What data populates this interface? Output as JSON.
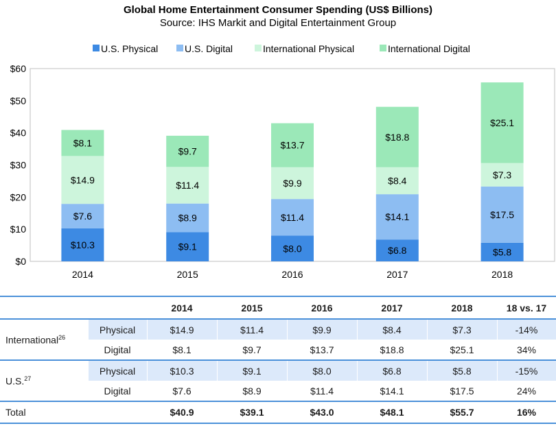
{
  "chart_data": {
    "type": "bar",
    "stacked": true,
    "title": "Global Home Entertainment Consumer Spending (US$ Billions)",
    "subtitle": "Source: IHS Markit and Digital Entertainment Group",
    "categories": [
      "2014",
      "2015",
      "2016",
      "2017",
      "2018"
    ],
    "series": [
      {
        "name": "U.S. Physical",
        "color": "#3d8ae3",
        "values": [
          10.3,
          9.1,
          8.0,
          6.8,
          5.8
        ],
        "labels": [
          "$10.3",
          "$9.1",
          "$8.0",
          "$6.8",
          "$5.8"
        ]
      },
      {
        "name": "U.S. Digital",
        "color": "#8dbdf2",
        "values": [
          7.6,
          8.9,
          11.4,
          14.1,
          17.5
        ],
        "labels": [
          "$7.6",
          "$8.9",
          "$11.4",
          "$14.1",
          "$17.5"
        ]
      },
      {
        "name": "International Physical",
        "color": "#cdf5dc",
        "values": [
          14.9,
          11.4,
          9.9,
          8.4,
          7.3
        ],
        "labels": [
          "$14.9",
          "$11.4",
          "$9.9",
          "$8.4",
          "$7.3"
        ]
      },
      {
        "name": "International Digital",
        "color": "#9be8b8",
        "values": [
          8.1,
          9.7,
          13.7,
          18.8,
          25.1
        ],
        "labels": [
          "$8.1",
          "$9.7",
          "$13.7",
          "$18.8",
          "$25.1"
        ]
      }
    ],
    "ylim": [
      0,
      60
    ],
    "yticks": [
      0,
      10,
      20,
      30,
      40,
      50,
      60
    ],
    "ytick_labels": [
      "$0",
      "$10",
      "$20",
      "$30",
      "$40",
      "$50",
      "$60"
    ],
    "xlabel": "",
    "ylabel": "",
    "legend_position": "top-center",
    "grid": false
  },
  "table": {
    "headers": [
      "2014",
      "2015",
      "2016",
      "2017",
      "2018",
      "18 vs. 17"
    ],
    "groups": [
      {
        "label": "International",
        "sup": "26",
        "rows": [
          {
            "label": "Physical",
            "values": [
              "$14.9",
              "$11.4",
              "$9.9",
              "$8.4",
              "$7.3",
              "-14%"
            ]
          },
          {
            "label": "Digital",
            "values": [
              "$8.1",
              "$9.7",
              "$13.7",
              "$18.8",
              "$25.1",
              "34%"
            ]
          }
        ]
      },
      {
        "label": "U.S.",
        "sup": "27",
        "rows": [
          {
            "label": "Physical",
            "values": [
              "$10.3",
              "$9.1",
              "$8.0",
              "$6.8",
              "$5.8",
              "-15%"
            ]
          },
          {
            "label": "Digital",
            "values": [
              "$7.6",
              "$8.9",
              "$11.4",
              "$14.1",
              "$17.5",
              "24%"
            ]
          }
        ]
      }
    ],
    "total": {
      "label": "Total",
      "values": [
        "$40.9",
        "$39.1",
        "$43.0",
        "$48.1",
        "$55.7",
        "16%"
      ]
    }
  }
}
